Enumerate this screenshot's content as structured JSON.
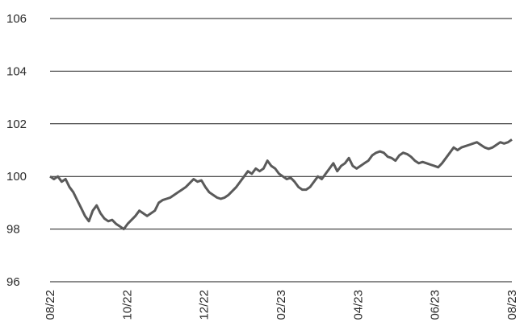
{
  "chart_data": {
    "type": "line",
    "ylim": [
      96,
      106
    ],
    "yticks": [
      "96",
      "98",
      "100",
      "102",
      "104",
      "106"
    ],
    "ytick_values": [
      96,
      98,
      100,
      102,
      104,
      106
    ],
    "xticks": [
      "08/22",
      "10/22",
      "12/22",
      "02/23",
      "04/23",
      "06/23",
      "08/23"
    ],
    "grid": "horizontal",
    "line_color": "#5a5a5a",
    "grid_color": "#1a1a1a",
    "series": [
      {
        "values": [
          100.0,
          99.9,
          100.0,
          99.8,
          99.9,
          99.6,
          99.4,
          99.1,
          98.8,
          98.5,
          98.3,
          98.7,
          98.9,
          98.6,
          98.4,
          98.3,
          98.35,
          98.2,
          98.1,
          98.0,
          98.2,
          98.35,
          98.5,
          98.7,
          98.6,
          98.5,
          98.6,
          98.7,
          99.0,
          99.1,
          99.15,
          99.2,
          99.3,
          99.4,
          99.5,
          99.6,
          99.75,
          99.9,
          99.8,
          99.85,
          99.6,
          99.4,
          99.3,
          99.2,
          99.15,
          99.2,
          99.3,
          99.45,
          99.6,
          99.8,
          100.0,
          100.2,
          100.1,
          100.3,
          100.2,
          100.3,
          100.6,
          100.4,
          100.3,
          100.1,
          100.0,
          99.9,
          99.95,
          99.8,
          99.6,
          99.5,
          99.5,
          99.6,
          99.8,
          100.0,
          99.9,
          100.1,
          100.3,
          100.5,
          100.2,
          100.4,
          100.5,
          100.7,
          100.4,
          100.3,
          100.4,
          100.5,
          100.6,
          100.8,
          100.9,
          100.95,
          100.9,
          100.75,
          100.7,
          100.6,
          100.8,
          100.9,
          100.85,
          100.75,
          100.6,
          100.5,
          100.55,
          100.5,
          100.45,
          100.4,
          100.35,
          100.5,
          100.7,
          100.9,
          101.1,
          101.0,
          101.1,
          101.15,
          101.2,
          101.25,
          101.3,
          101.2,
          101.1,
          101.05,
          101.1,
          101.2,
          101.3,
          101.25,
          101.3,
          101.4
        ]
      }
    ]
  }
}
